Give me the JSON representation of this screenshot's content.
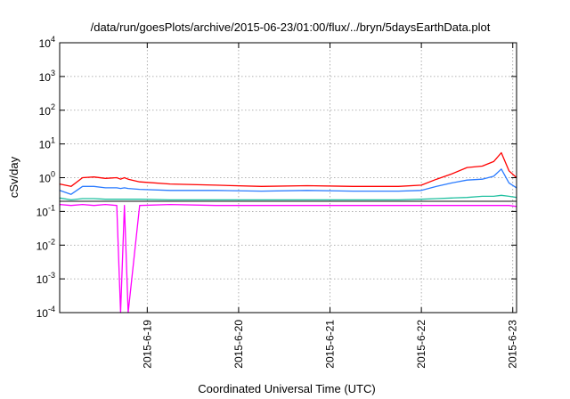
{
  "chart_data": {
    "type": "line",
    "title": "/data/run/goesPlots/archive/2015-06-23/01:00/flux/../bryn/5daysEarthData.plot",
    "xlabel": "Coordinated Universal Time (UTC)",
    "ylabel": "cSv/day",
    "y_scale": "log",
    "ylim": [
      0.0001,
      10000
    ],
    "y_ticks": [
      {
        "base": "10",
        "exp": "-4",
        "value": 0.0001
      },
      {
        "base": "10",
        "exp": "-3",
        "value": 0.001
      },
      {
        "base": "10",
        "exp": "-2",
        "value": 0.01
      },
      {
        "base": "10",
        "exp": "-1",
        "value": 0.1
      },
      {
        "base": "10",
        "exp": "0",
        "value": 1
      },
      {
        "base": "10",
        "exp": "1",
        "value": 10
      },
      {
        "base": "10",
        "exp": "2",
        "value": 100
      },
      {
        "base": "10",
        "exp": "3",
        "value": 1000
      },
      {
        "base": "10",
        "exp": "4",
        "value": 10000
      }
    ],
    "xlim": [
      "2015-06-18T01:00",
      "2015-06-23T01:00"
    ],
    "x_ticks": [
      {
        "label": "2015-6-19",
        "value": "2015-06-19T00:00"
      },
      {
        "label": "2015-6-20",
        "value": "2015-06-20T00:00"
      },
      {
        "label": "2015-6-21",
        "value": "2015-06-21T00:00"
      },
      {
        "label": "2015-6-22",
        "value": "2015-06-22T00:00"
      },
      {
        "label": "2015-6-23",
        "value": "2015-06-23T00:00"
      }
    ],
    "grid": true,
    "legend": "none",
    "x": [
      "2015-06-18T01:00",
      "2015-06-18T04:00",
      "2015-06-18T07:00",
      "2015-06-18T10:00",
      "2015-06-18T13:00",
      "2015-06-18T16:00",
      "2015-06-18T17:00",
      "2015-06-18T18:00",
      "2015-06-18T19:00",
      "2015-06-18T22:00",
      "2015-06-19T06:00",
      "2015-06-19T18:00",
      "2015-06-20T06:00",
      "2015-06-20T18:00",
      "2015-06-21T06:00",
      "2015-06-21T18:00",
      "2015-06-22T00:00",
      "2015-06-22T04:00",
      "2015-06-22T08:00",
      "2015-06-22T12:00",
      "2015-06-22T16:00",
      "2015-06-22T19:00",
      "2015-06-22T21:00",
      "2015-06-22T23:00",
      "2015-06-23T01:00"
    ],
    "series": [
      {
        "color": "#ff0000",
        "values": [
          0.65,
          0.55,
          1.0,
          1.05,
          0.95,
          1.0,
          0.9,
          1.0,
          0.9,
          0.75,
          0.65,
          0.6,
          0.55,
          0.58,
          0.55,
          0.55,
          0.6,
          0.9,
          1.3,
          2.0,
          2.2,
          3.0,
          5.5,
          1.6,
          1.0
        ]
      },
      {
        "color": "#2a7bff",
        "values": [
          0.42,
          0.32,
          0.55,
          0.55,
          0.5,
          0.5,
          0.48,
          0.5,
          0.48,
          0.45,
          0.42,
          0.42,
          0.4,
          0.42,
          0.4,
          0.4,
          0.42,
          0.55,
          0.7,
          0.85,
          0.9,
          1.1,
          1.8,
          0.7,
          0.5
        ]
      },
      {
        "color": "#20c0a0",
        "values": [
          0.25,
          0.22,
          0.24,
          0.24,
          0.23,
          0.23,
          0.23,
          0.23,
          0.23,
          0.23,
          0.22,
          0.22,
          0.22,
          0.22,
          0.22,
          0.22,
          0.23,
          0.24,
          0.25,
          0.26,
          0.28,
          0.28,
          0.3,
          0.28,
          0.26
        ]
      },
      {
        "color": "#404040",
        "values": [
          0.2,
          0.2,
          0.2,
          0.2,
          0.2,
          0.2,
          0.2,
          0.2,
          0.2,
          0.2,
          0.2,
          0.2,
          0.2,
          0.2,
          0.2,
          0.2,
          0.2,
          0.2,
          0.2,
          0.2,
          0.2,
          0.2,
          0.2,
          0.2,
          0.2
        ]
      },
      {
        "color": "#ff00ff",
        "values": [
          0.16,
          0.15,
          0.16,
          0.15,
          0.16,
          0.15,
          0.0001,
          0.15,
          0.0001,
          0.15,
          0.16,
          0.15,
          0.15,
          0.15,
          0.15,
          0.15,
          0.15,
          0.15,
          0.15,
          0.15,
          0.15,
          0.15,
          0.15,
          0.15,
          0.14
        ]
      }
    ]
  }
}
